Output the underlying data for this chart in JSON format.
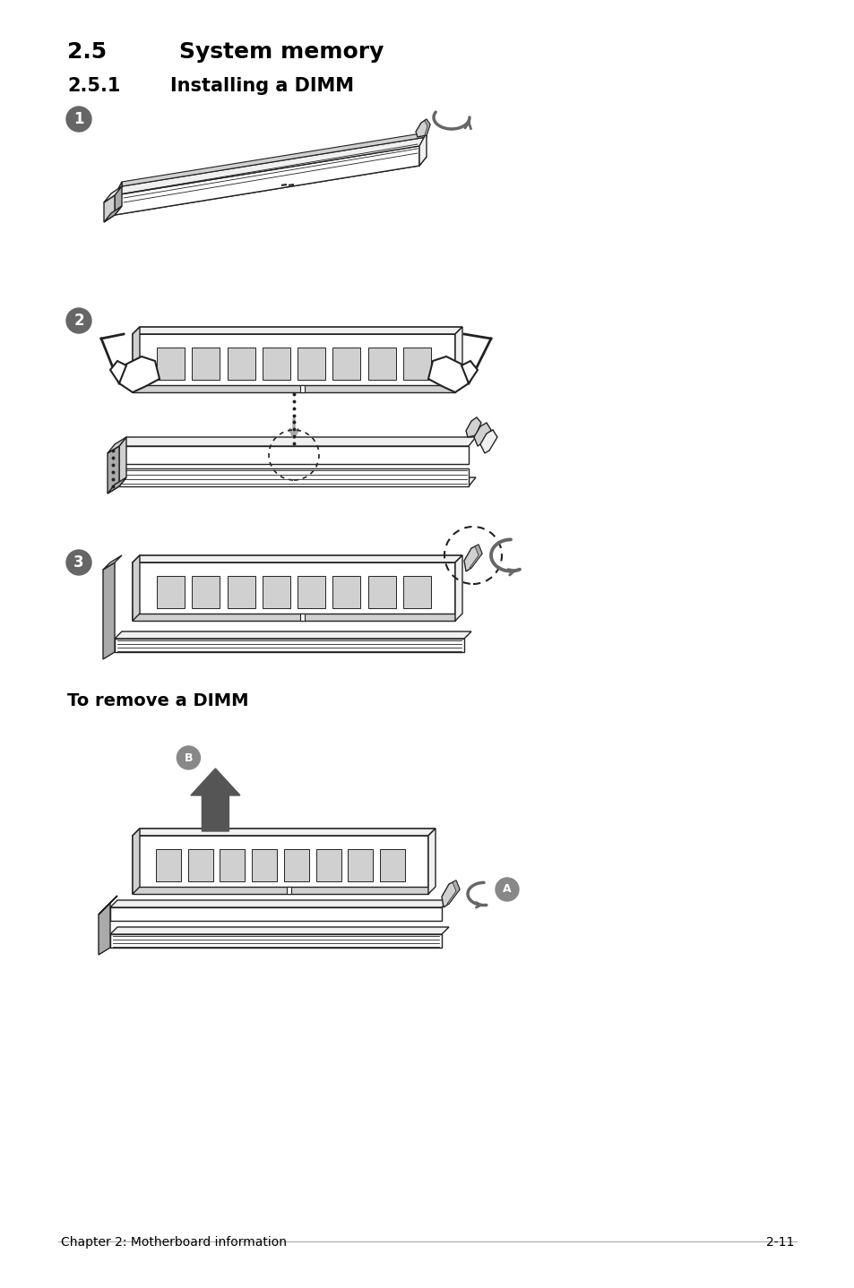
{
  "title1": "2.5",
  "title1_tab": "        ",
  "title1_text": "System memory",
  "title2": "2.5.1",
  "title2_tab": "     ",
  "title2_text": "Installing a DIMM",
  "step1_num": "1",
  "step2_num": "2",
  "step3_num": "3",
  "remove_title": "To remove a DIMM",
  "footer_left": "Chapter 2: Motherboard information",
  "footer_right": "2-11",
  "bg_color": "#ffffff",
  "text_color": "#000000",
  "step_circle_color": "#666666",
  "step_circle_text": "#ffffff",
  "lc": "#222222",
  "fc_light": "#f0f0f0",
  "fc_mid": "#d0d0d0",
  "fc_dark": "#aaaaaa",
  "ac": "#666666"
}
